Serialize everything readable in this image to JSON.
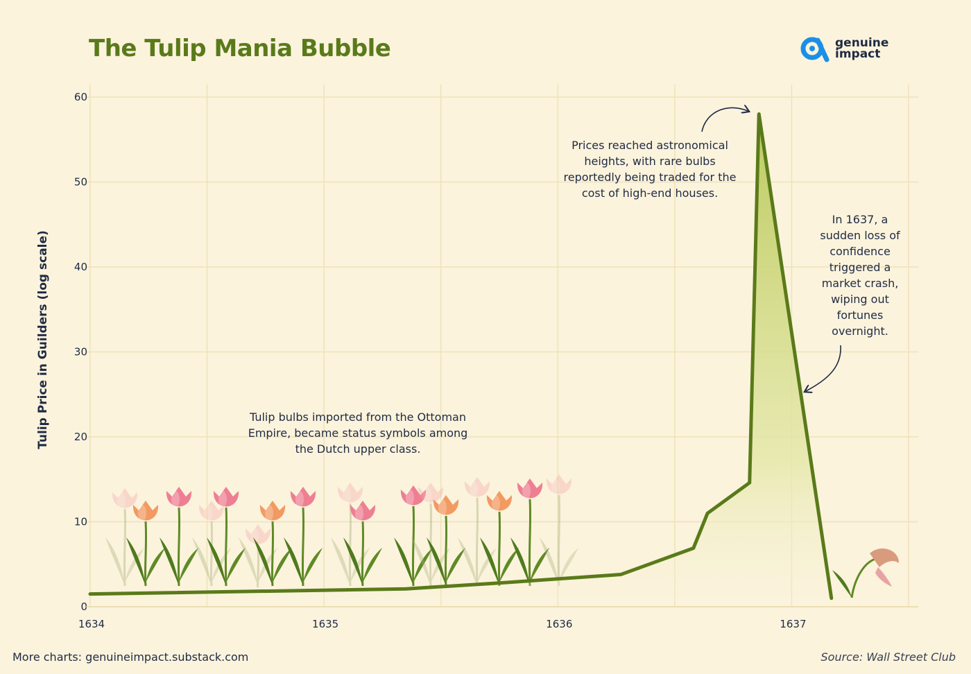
{
  "title": "The Tulip Mania Bubble",
  "brand": {
    "line1": "genuine",
    "line2": "impact",
    "accent_color": "#1a8fe8",
    "text_color": "#1f2a44",
    "icon": "genuine-impact-logo-icon"
  },
  "footer": {
    "more_charts": "More charts: genuineimpact.substack.com",
    "source": "Source: Wall Street Club"
  },
  "annotations": {
    "early": "Tulip bulbs imported from the Ottoman Empire, became status symbols among the Dutch upper class.",
    "peak": "Prices reached astronomical heights, with rare bulbs reportedly being traded for the cost of high-end houses.",
    "crash": "In 1637, a sudden loss of confidence triggered a market crash, wiping out fortunes overnight."
  },
  "colors": {
    "title": "#5a7a1a",
    "line": "#5a7a1a",
    "fill_top": "#b9c95a",
    "grid": "#efe2b8",
    "background": "#fbf3dc",
    "tulip_pink": "#ee7f93",
    "tulip_orange": "#f29a62",
    "leaf": "#5f8a26"
  },
  "chart_data": {
    "type": "area",
    "ylabel": "Tulip Price in Guilders (log scale)",
    "xlabel": "",
    "xlim": [
      1634,
      1637.5
    ],
    "ylim": [
      0,
      60
    ],
    "x_ticks": [
      1634,
      1635,
      1636,
      1637
    ],
    "y_ticks": [
      0,
      10,
      20,
      30,
      40,
      50,
      60
    ],
    "grid": true,
    "legend": "none",
    "series": [
      {
        "x": [
          1634.0,
          1635.35,
          1635.75,
          1636.27,
          1636.58,
          1636.64,
          1636.82,
          1636.86,
          1637.17
        ],
        "y": [
          1.5,
          2.1,
          2.8,
          3.8,
          6.9,
          11.0,
          14.6,
          58.0,
          1.0
        ]
      }
    ]
  }
}
